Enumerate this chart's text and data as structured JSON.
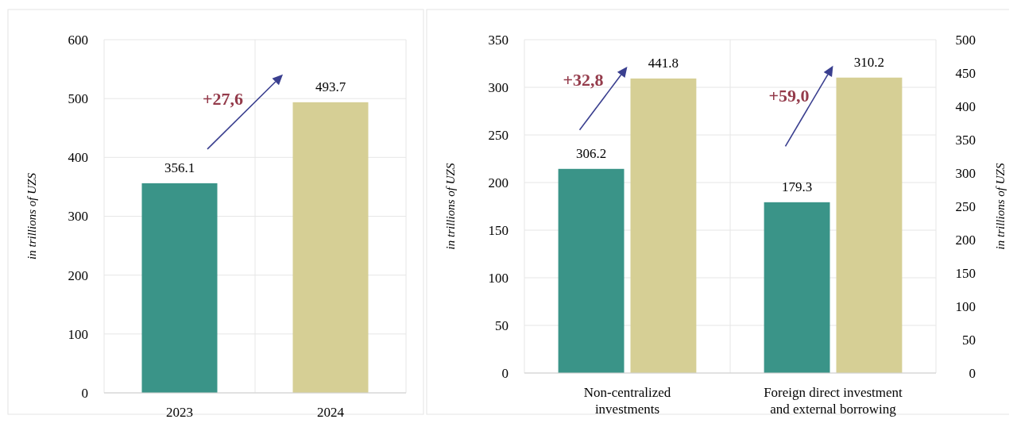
{
  "chart_data": [
    {
      "type": "bar",
      "categories": [
        "2023",
        "2024"
      ],
      "values": [
        356.1,
        493.7
      ],
      "colors": [
        "#3a9488",
        "#d6cf95"
      ],
      "ylabel": "in trillions of UZS",
      "ylim": [
        0,
        600
      ],
      "yticks": [
        0,
        100,
        200,
        300,
        400,
        500,
        600
      ],
      "grid": true,
      "data_labels": true,
      "annotations": [
        "+27,6"
      ]
    },
    {
      "type": "bar",
      "categories": [
        "Non-centralized investments",
        "Foreign direct investment and external borrowing"
      ],
      "series": [
        {
          "color": "#3a9488",
          "axis": "y2",
          "values": [
            306.2,
            null
          ]
        },
        {
          "color": "#d6cf95",
          "axis": "y2",
          "values": [
            441.8,
            null
          ]
        },
        {
          "color": "#3a9488",
          "values": [
            null,
            179.3
          ]
        },
        {
          "color": "#d6cf95",
          "values": [
            null,
            310.2
          ]
        }
      ],
      "ylabel": "in trillions of UZS",
      "y2label": "in trillions of UZS",
      "ylim": [
        0,
        350
      ],
      "yticks": [
        0,
        50,
        100,
        150,
        200,
        250,
        300,
        350
      ],
      "y2lim": [
        0,
        500
      ],
      "y2ticks": [
        0,
        50,
        100,
        150,
        200,
        250,
        300,
        350,
        400,
        450,
        500
      ],
      "grid": true,
      "data_labels": true,
      "annotations": [
        "+32,8",
        "+59,0"
      ]
    }
  ]
}
